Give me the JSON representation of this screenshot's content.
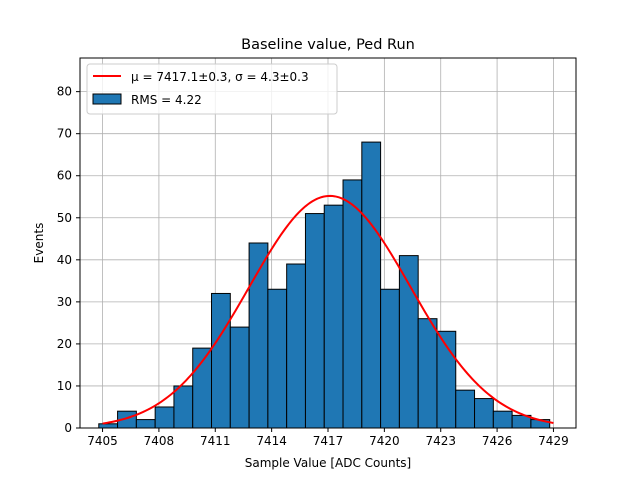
{
  "chart_data": {
    "type": "bar",
    "title": "Baseline value, Ped Run",
    "xlabel": "Sample Value [ADC Counts]",
    "ylabel": "Events",
    "xlim": [
      7403.8,
      7430.2
    ],
    "ylim": [
      0,
      88
    ],
    "grid": true,
    "xticks": [
      7405,
      7408,
      7411,
      7414,
      7417,
      7420,
      7423,
      7426,
      7429
    ],
    "yticks": [
      0,
      10,
      20,
      30,
      40,
      50,
      60,
      70,
      80
    ],
    "bin_start": 7404.8,
    "bin_width": 1.0,
    "histogram": {
      "name": "RMS = 4.22",
      "color": "#1f77b4",
      "values": [
        1,
        4,
        2,
        5,
        10,
        19,
        32,
        24,
        44,
        33,
        39,
        51,
        53,
        59,
        68,
        33,
        41,
        26,
        23,
        9,
        7,
        4,
        3,
        2
      ]
    },
    "fit": {
      "label": "μ = 7417.1±0.3, σ = 4.3±0.3",
      "color": "#ff0000",
      "mu": 7417.1,
      "sigma": 4.3,
      "amplitude": 55.2,
      "x_range": [
        7405.0,
        7429.0
      ]
    },
    "legend_position": "top-left"
  }
}
